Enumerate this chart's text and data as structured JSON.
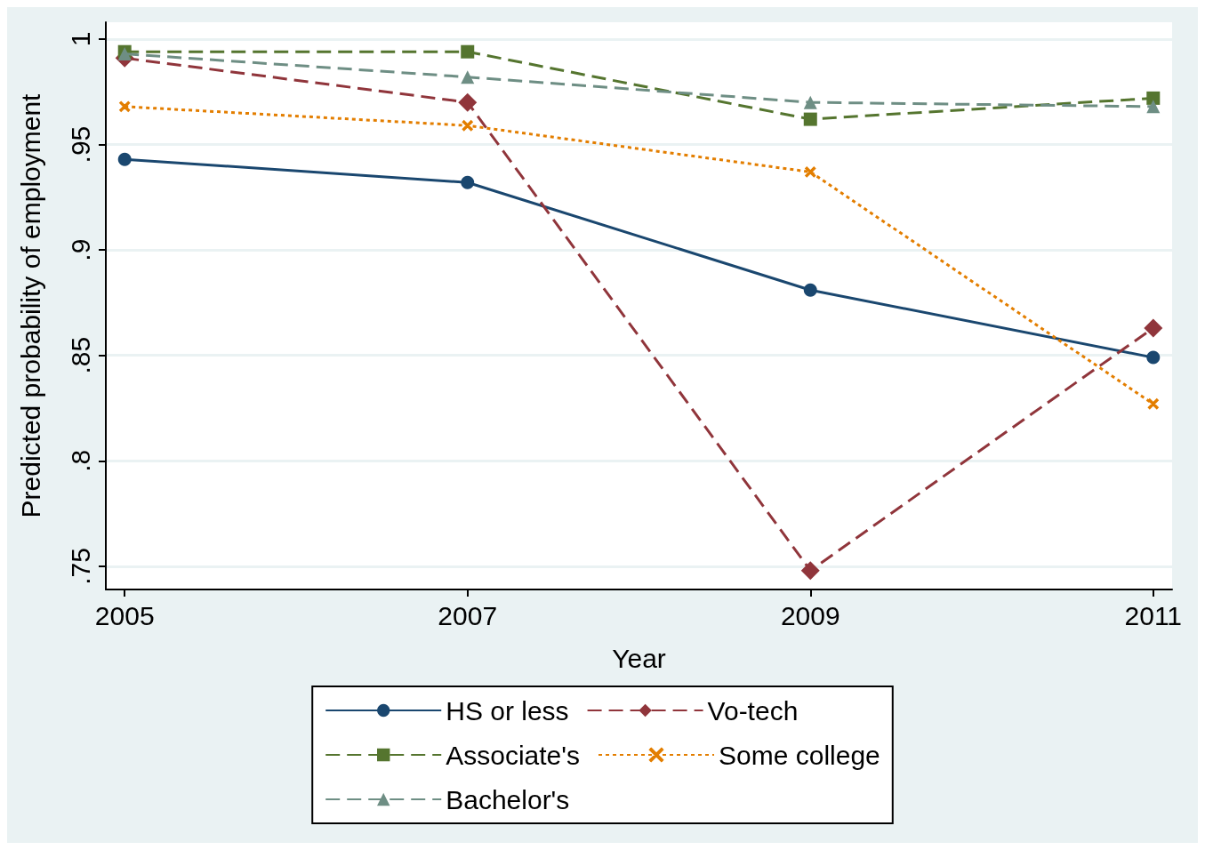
{
  "chart_data": {
    "type": "line",
    "xlabel": "Year",
    "ylabel": "Predicted probability of employment",
    "x": [
      2005,
      2007,
      2009,
      2011
    ],
    "xlim": [
      2004.89,
      2011.11
    ],
    "xticks": [
      2005,
      2007,
      2009,
      2011
    ],
    "ylim": [
      0.739,
      1.008
    ],
    "yticks": [
      {
        "value": 0.75,
        "label": ".75"
      },
      {
        "value": 0.8,
        "label": ".8"
      },
      {
        "value": 0.85,
        "label": ".85"
      },
      {
        "value": 0.9,
        "label": ".9"
      },
      {
        "value": 0.95,
        "label": ".95"
      },
      {
        "value": 1,
        "label": "1"
      }
    ],
    "grid": "y",
    "legend": "bottom",
    "series": [
      {
        "name": "HS or less",
        "color": "#1a476f",
        "marker": "circle",
        "line_style": "solid",
        "values": [
          0.943,
          0.932,
          0.881,
          0.849
        ]
      },
      {
        "name": "Vo-tech",
        "color": "#90353b",
        "marker": "diamond",
        "line_style": "dashed",
        "values": [
          0.991,
          0.97,
          0.748,
          0.863
        ]
      },
      {
        "name": "Associate's",
        "color": "#55752f",
        "marker": "square",
        "line_style": "dashed",
        "values": [
          0.994,
          0.994,
          0.962,
          0.972
        ]
      },
      {
        "name": "Some college",
        "color": "#e37e00",
        "marker": "cross",
        "line_style": "dotted",
        "values": [
          0.968,
          0.959,
          0.937,
          0.827
        ]
      },
      {
        "name": "Bachelor's",
        "color": "#6e8e84",
        "marker": "triangle",
        "line_style": "dashed",
        "values": [
          0.993,
          0.982,
          0.97,
          0.968
        ]
      }
    ]
  }
}
